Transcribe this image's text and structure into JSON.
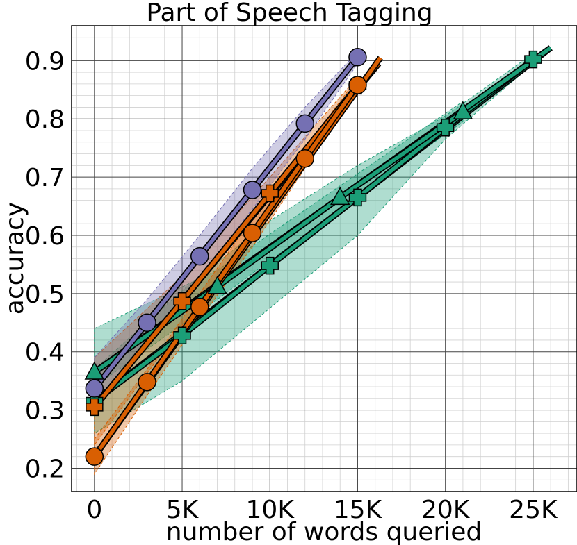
{
  "chart_data": {
    "type": "line",
    "title": "Part of Speech Tagging",
    "xlabel": "number of words queried",
    "ylabel": "accuracy",
    "xlim": [
      -1300,
      27500
    ],
    "ylim": [
      0.16,
      0.96
    ],
    "xticks": [
      0,
      5000,
      10000,
      15000,
      20000,
      25000
    ],
    "xtick_labels": [
      "0",
      "5K",
      "10K",
      "15K",
      "20K",
      "25K"
    ],
    "yticks": [
      0.2,
      0.3,
      0.4,
      0.5,
      0.6,
      0.7,
      0.8,
      0.9
    ],
    "ytick_labels": [
      "0.2",
      "0.3",
      "0.4",
      "0.5",
      "0.6",
      "0.7",
      "0.8",
      "0.9"
    ],
    "grid": true,
    "series": [
      {
        "color": "#1b9e77",
        "marker": "plus",
        "x": [
          0,
          5000,
          10000,
          15000,
          20000,
          25000
        ],
        "y": [
          0.315,
          0.428,
          0.548,
          0.665,
          0.785,
          0.902
        ],
        "band_low": [
          0.26,
          0.35,
          0.475,
          0.6,
          0.765,
          0.895
        ],
        "band_high": [
          0.37,
          0.505,
          0.625,
          0.72,
          0.805,
          0.912
        ],
        "trend": [
          [
            0,
            0.315
          ],
          [
            26000,
            0.922
          ]
        ]
      },
      {
        "color": "#1b9e77",
        "marker": "triangle",
        "x": [
          0,
          7000,
          14000,
          21000
        ],
        "y": [
          0.365,
          0.512,
          0.665,
          0.812
        ],
        "band_low": [
          0.34,
          0.49,
          0.645,
          0.795
        ],
        "band_high": [
          0.44,
          0.54,
          0.685,
          0.83
        ],
        "trend": [
          [
            0,
            0.365
          ],
          [
            26000,
            0.922
          ]
        ]
      },
      {
        "color": "#d95f02",
        "marker": "plus",
        "x": [
          0,
          5000,
          10000,
          15000
        ],
        "y": [
          0.305,
          0.487,
          0.672,
          0.857
        ],
        "band_low": [
          0.24,
          0.445,
          0.645,
          0.85
        ],
        "band_high": [
          0.39,
          0.53,
          0.7,
          0.872
        ],
        "trend": [
          [
            0,
            0.305
          ],
          [
            16200,
            0.895
          ]
        ]
      },
      {
        "color": "#d95f02",
        "marker": "circle",
        "x": [
          0,
          3000,
          6000,
          9000,
          12000,
          15000
        ],
        "y": [
          0.22,
          0.348,
          0.477,
          0.604,
          0.732,
          0.858
        ],
        "band_low": [
          0.19,
          0.325,
          0.455,
          0.58,
          0.715,
          0.85
        ],
        "band_high": [
          0.25,
          0.37,
          0.5,
          0.63,
          0.75,
          0.87
        ],
        "trend": [
          [
            0,
            0.22
          ],
          [
            16300,
            0.905
          ]
        ]
      },
      {
        "color": "#7570b3",
        "marker": "circle",
        "x": [
          0,
          3000,
          6000,
          9000,
          12000,
          15000
        ],
        "y": [
          0.337,
          0.45,
          0.564,
          0.678,
          0.792,
          0.906
        ],
        "band_low": [
          0.3,
          0.42,
          0.53,
          0.645,
          0.765,
          0.895
        ],
        "band_high": [
          0.39,
          0.49,
          0.6,
          0.715,
          0.82,
          0.915
        ],
        "trend": null
      }
    ]
  }
}
